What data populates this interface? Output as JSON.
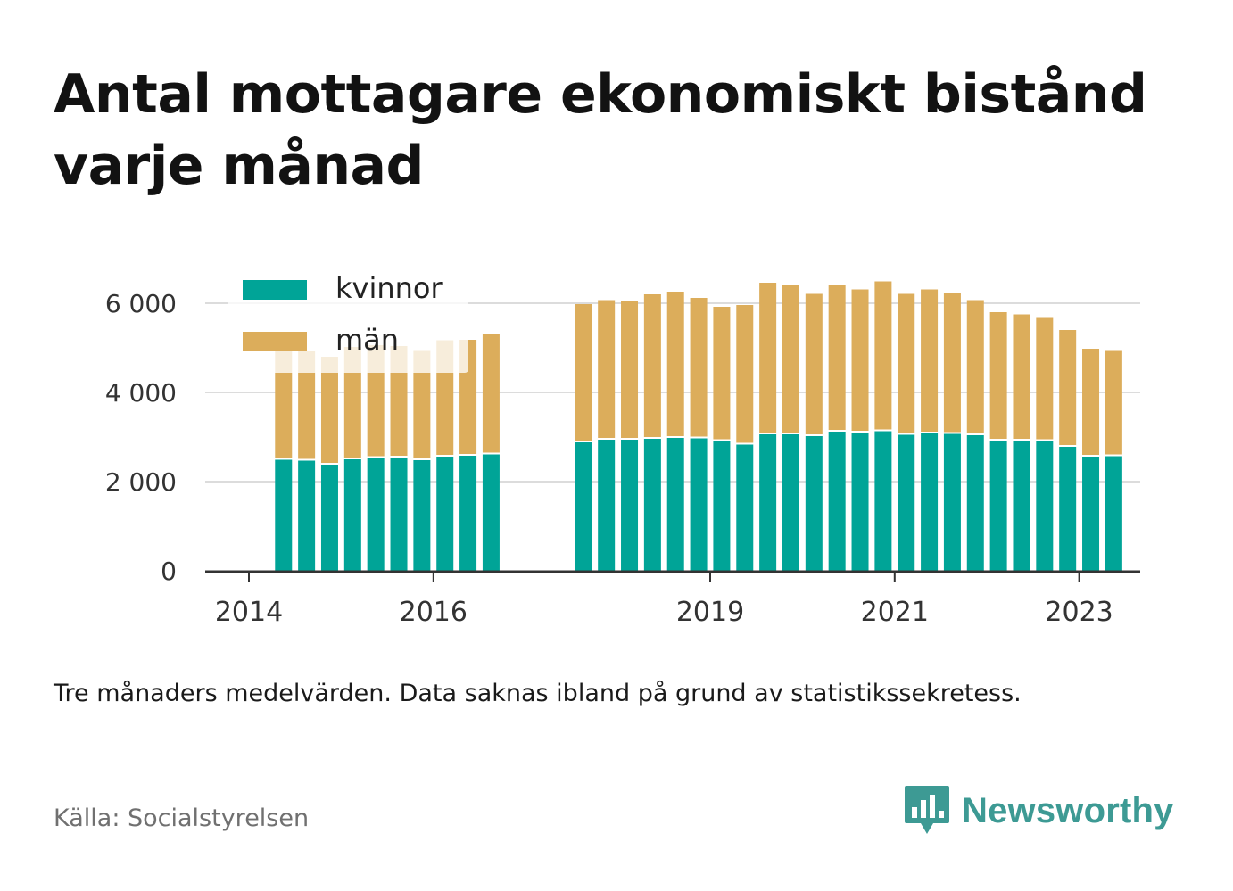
{
  "title": "Antal mottagare ekonomiskt bistånd varje månad",
  "note": "Tre månaders medelvärden. Data saknas ibland på grund av statistikssekretess.",
  "source": "Källa: Socialstyrelsen",
  "brand": {
    "name": "Newsworthy",
    "icon": "bar-chart-speech-bubble-icon",
    "color": "#3d9a94"
  },
  "chart_data": {
    "type": "bar",
    "stacked": true,
    "x_unit": "quarter",
    "x": [
      "2014-Q2",
      "2014-Q3",
      "2014-Q4",
      "2015-Q1",
      "2015-Q2",
      "2015-Q3",
      "2015-Q4",
      "2016-Q1",
      "2016-Q2",
      "2016-Q3",
      "2017-Q3",
      "2017-Q4",
      "2018-Q1",
      "2018-Q2",
      "2018-Q3",
      "2018-Q4",
      "2019-Q1",
      "2019-Q2",
      "2019-Q3",
      "2019-Q4",
      "2020-Q1",
      "2020-Q2",
      "2020-Q3",
      "2020-Q4",
      "2021-Q1",
      "2021-Q2",
      "2021-Q3",
      "2021-Q4",
      "2022-Q1",
      "2022-Q2",
      "2022-Q3",
      "2022-Q4",
      "2023-Q1",
      "2023-Q2"
    ],
    "series": [
      {
        "name": "kvinnor",
        "color": "#00a497",
        "values": [
          2490,
          2470,
          2380,
          2500,
          2530,
          2540,
          2480,
          2560,
          2580,
          2610,
          2880,
          2940,
          2940,
          2960,
          2980,
          2970,
          2910,
          2830,
          3060,
          3060,
          3020,
          3120,
          3100,
          3130,
          3050,
          3080,
          3070,
          3040,
          2920,
          2920,
          2910,
          2780,
          2560,
          2570
        ]
      },
      {
        "name": "män",
        "color": "#dcad5b",
        "values": [
          2460,
          2460,
          2420,
          2520,
          2530,
          2500,
          2470,
          2610,
          2600,
          2700,
          3100,
          3130,
          3110,
          3240,
          3280,
          3150,
          3010,
          3130,
          3400,
          3360,
          3190,
          3290,
          3210,
          3360,
          3160,
          3230,
          3150,
          3030,
          2880,
          2830,
          2780,
          2620,
          2420,
          2380
        ]
      }
    ],
    "x_ticks": [
      "2014",
      "2016",
      "2019",
      "2021",
      "2023"
    ],
    "y_ticks": [
      "0",
      "2 000",
      "4 000",
      "6 000"
    ],
    "ylim": [
      0,
      6600
    ],
    "grid": true,
    "legend": {
      "position": "top-left",
      "entries": [
        "kvinnor",
        "män"
      ]
    }
  }
}
